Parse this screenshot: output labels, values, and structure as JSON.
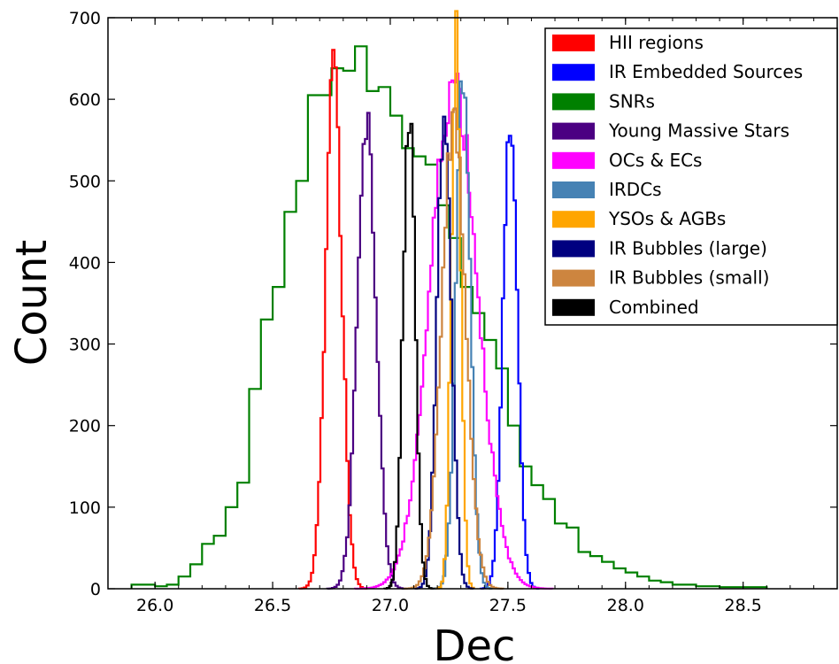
{
  "chart_data": {
    "type": "histogram-step",
    "xlabel": "Dec",
    "ylabel": "Count",
    "xlim": [
      25.8,
      28.9
    ],
    "ylim": [
      0,
      700
    ],
    "xticks": [
      {
        "value": 26.0,
        "label": "26.0"
      },
      {
        "value": 26.5,
        "label": "26.5"
      },
      {
        "value": 27.0,
        "label": "27.0"
      },
      {
        "value": 27.5,
        "label": "27.5"
      },
      {
        "value": 28.0,
        "label": "28.0"
      },
      {
        "value": 28.5,
        "label": "28.5"
      }
    ],
    "yticks": [
      {
        "value": 0,
        "label": "0"
      },
      {
        "value": 100,
        "label": "100"
      },
      {
        "value": 200,
        "label": "200"
      },
      {
        "value": 300,
        "label": "300"
      },
      {
        "value": 400,
        "label": "400"
      },
      {
        "value": 500,
        "label": "500"
      },
      {
        "value": 600,
        "label": "600"
      },
      {
        "value": 700,
        "label": "700"
      }
    ],
    "legend_position": "top-right",
    "series": [
      {
        "name": "HII regions",
        "color": "#ff0000",
        "center": 26.76,
        "sigma": 0.035,
        "peak": 632
      },
      {
        "name": "IR Embedded Sources",
        "color": "#0000ff",
        "center": 27.51,
        "sigma": 0.03,
        "peak": 590
      },
      {
        "name": "SNRs",
        "color": "#008000",
        "bin_edges": [
          25.9,
          26.0,
          26.05,
          26.1,
          26.15,
          26.2,
          26.25,
          26.3,
          26.35,
          26.4,
          26.45,
          26.5,
          26.55,
          26.6,
          26.65,
          26.7,
          26.75,
          26.8,
          26.85,
          26.9,
          26.95,
          27.0,
          27.05,
          27.1,
          27.15,
          27.2,
          27.25,
          27.3,
          27.35,
          27.4,
          27.45,
          27.5,
          27.55,
          27.6,
          27.65,
          27.7,
          27.75,
          27.8,
          27.85,
          27.9,
          27.95,
          28.0,
          28.05,
          28.1,
          28.15,
          28.2,
          28.3,
          28.4,
          28.6
        ],
        "counts": [
          5,
          3,
          5,
          15,
          30,
          55,
          65,
          100,
          130,
          245,
          330,
          370,
          462,
          500,
          605,
          605,
          638,
          635,
          665,
          610,
          615,
          580,
          540,
          530,
          520,
          470,
          430,
          370,
          338,
          305,
          270,
          200,
          150,
          127,
          110,
          80,
          75,
          45,
          40,
          33,
          25,
          20,
          15,
          10,
          8,
          5,
          3,
          2
        ]
      },
      {
        "name": "Young Massive Stars",
        "color": "#4b0082",
        "center": 26.9,
        "sigma": 0.04,
        "peak": 570
      },
      {
        "name": "OCs & ECs",
        "color": "#ff00ff",
        "center": 27.27,
        "sigma": 0.1,
        "peak": 620
      },
      {
        "name": "IRDCs",
        "color": "#4682b4",
        "center": 27.31,
        "sigma": 0.03,
        "peak": 630
      },
      {
        "name": "YSOs & AGBs",
        "color": "#ffa500",
        "center": 27.28,
        "sigma": 0.02,
        "peak": 690
      },
      {
        "name": "IR Bubbles (large)",
        "color": "#000080",
        "center": 27.23,
        "sigma": 0.03,
        "peak": 590
      },
      {
        "name": "IR Bubbles (small)",
        "color": "#cd853f",
        "center": 27.27,
        "sigma": 0.05,
        "peak": 580
      },
      {
        "name": "Combined",
        "color": "#000000",
        "center": 27.08,
        "sigma": 0.025,
        "peak": 593
      }
    ]
  }
}
